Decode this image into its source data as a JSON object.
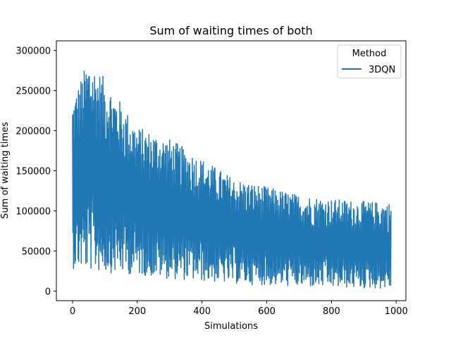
{
  "chart_data": {
    "type": "line",
    "title": "Sum of waiting times of both",
    "xlabel": "Simulations",
    "ylabel": "Sum of waiting times",
    "xlim": [
      -50,
      1030
    ],
    "ylim": [
      -12000,
      312000
    ],
    "xticks": [
      0,
      200,
      400,
      600,
      800,
      1000
    ],
    "yticks": [
      0,
      50000,
      100000,
      150000,
      200000,
      250000,
      300000
    ],
    "grid": false,
    "legend": {
      "title": "Method",
      "placement": "upper-right"
    },
    "series": [
      {
        "name": "3DQN",
        "color": "#1f77b4",
        "n_points": 985,
        "envelope_x": [
          0,
          50,
          100,
          200,
          300,
          400,
          500,
          600,
          700,
          800,
          900,
          985
        ],
        "envelope_max": [
          240000,
          290000,
          265000,
          205000,
          190000,
          165000,
          140000,
          130000,
          120000,
          115000,
          112000,
          110000
        ],
        "envelope_min": [
          28000,
          25000,
          23000,
          20000,
          15000,
          12000,
          9000,
          7000,
          5000,
          4000,
          3000,
          3000
        ]
      }
    ]
  }
}
